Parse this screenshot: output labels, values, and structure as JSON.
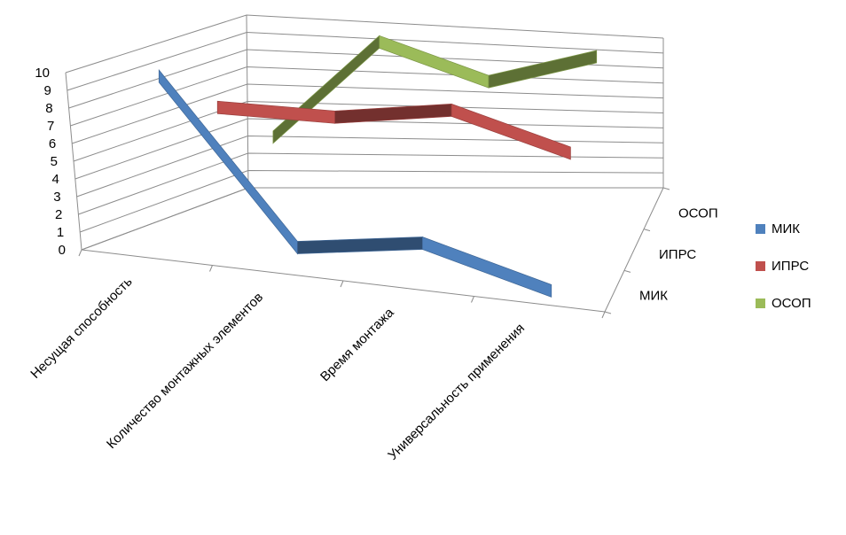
{
  "chart_data": {
    "type": "line",
    "style": "3d",
    "categories": [
      "Несущая способность",
      "Количество монтажных элементов",
      "Время монтажа",
      "Универсальность применения"
    ],
    "series": [
      {
        "name": "МИК",
        "color": "#4F81BD",
        "values": [
          10,
          1,
          2,
          0
        ]
      },
      {
        "name": "ИПРС",
        "color": "#C0504D",
        "values": [
          7,
          7,
          8,
          6
        ]
      },
      {
        "name": "ОСОП",
        "color": "#9BBB59",
        "values": [
          4,
          10,
          8,
          10
        ]
      }
    ],
    "ylim": [
      0,
      10
    ],
    "yticks": [
      "0",
      "1",
      "2",
      "3",
      "4",
      "5",
      "6",
      "7",
      "8",
      "9",
      "10"
    ],
    "grid": true,
    "legend_position": "right"
  }
}
